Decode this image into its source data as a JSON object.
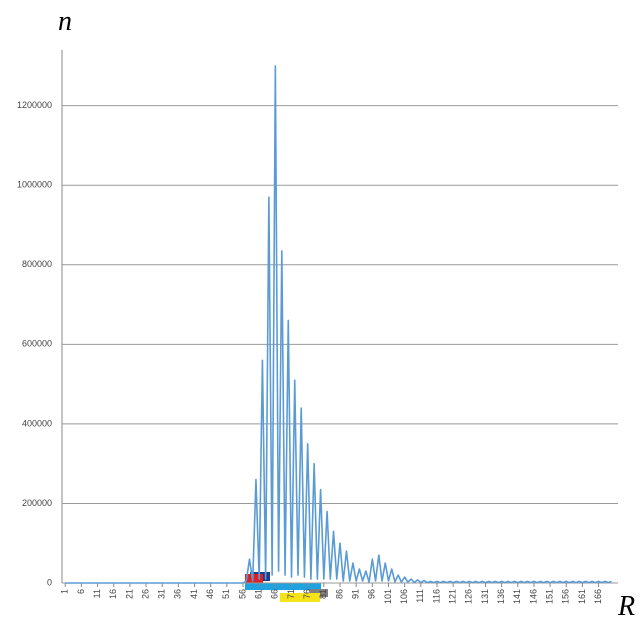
{
  "chart_data": {
    "type": "line",
    "y_label": "n",
    "x_label": "R",
    "x": [
      1,
      2,
      3,
      4,
      5,
      6,
      7,
      8,
      9,
      10,
      11,
      12,
      13,
      14,
      15,
      16,
      17,
      18,
      19,
      20,
      21,
      22,
      23,
      24,
      25,
      26,
      27,
      28,
      29,
      30,
      31,
      32,
      33,
      34,
      35,
      36,
      37,
      38,
      39,
      40,
      41,
      42,
      43,
      44,
      45,
      46,
      47,
      48,
      49,
      50,
      51,
      52,
      53,
      54,
      55,
      56,
      57,
      58,
      59,
      60,
      61,
      62,
      63,
      64,
      65,
      66,
      67,
      68,
      69,
      70,
      71,
      72,
      73,
      74,
      75,
      76,
      77,
      78,
      79,
      80,
      81,
      82,
      83,
      84,
      85,
      86,
      87,
      88,
      89,
      90,
      91,
      92,
      93,
      94,
      95,
      96,
      97,
      98,
      99,
      100,
      101,
      102,
      103,
      104,
      105,
      106,
      107,
      108,
      109,
      110,
      111,
      112,
      113,
      114,
      115,
      116,
      117,
      118,
      119,
      120,
      121,
      122,
      123,
      124,
      125,
      126,
      127,
      128,
      129,
      130,
      131,
      132,
      133,
      134,
      135,
      136,
      137,
      138,
      139,
      140,
      141,
      142,
      143,
      144,
      145,
      146,
      147,
      148,
      149,
      150,
      151,
      152,
      153,
      154,
      155,
      156,
      157,
      158,
      159,
      160,
      161,
      162,
      163,
      164,
      165,
      166,
      167,
      168,
      169,
      170
    ],
    "series": [
      {
        "color": "#5b9bd5",
        "values": [
          0,
          0,
          0,
          0,
          0,
          0,
          0,
          0,
          0,
          0,
          0,
          0,
          0,
          0,
          0,
          0,
          0,
          0,
          0,
          0,
          0,
          0,
          0,
          0,
          0,
          0,
          0,
          0,
          0,
          0,
          0,
          0,
          0,
          0,
          0,
          0,
          0,
          0,
          0,
          0,
          0,
          0,
          0,
          0,
          0,
          0,
          0,
          0,
          0,
          0,
          0,
          0,
          0,
          0,
          0,
          0,
          5000,
          60000,
          5000,
          260000,
          10000,
          560000,
          10000,
          970000,
          20000,
          1300000,
          30000,
          835000,
          20000,
          660000,
          15000,
          510000,
          20000,
          440000,
          15000,
          350000,
          10000,
          300000,
          10000,
          235000,
          10000,
          180000,
          10000,
          130000,
          10000,
          100000,
          5000,
          80000,
          5000,
          50000,
          5000,
          35000,
          5000,
          30000,
          2000,
          60000,
          5000,
          70000,
          5000,
          50000,
          5000,
          35000,
          3000,
          20000,
          2000,
          15000,
          2000,
          10000,
          1000,
          8000,
          1000,
          6000,
          1000,
          4000,
          1000,
          4000,
          1000,
          4000,
          1000,
          4000,
          1000,
          4000,
          1000,
          4000,
          1000,
          4000,
          1000,
          4000,
          1000,
          4000,
          1000,
          4000,
          1000,
          4000,
          1000,
          4000,
          1000,
          4000,
          1000,
          4000,
          1000,
          4000,
          1000,
          4000,
          1000,
          4000,
          1000,
          4000,
          1000,
          4000,
          1000,
          4000,
          1000,
          4000,
          1000,
          4000,
          1000,
          4000,
          1000,
          4000,
          1000,
          4000,
          1000,
          4000,
          1000,
          4000,
          1000,
          4000,
          1000,
          4000
        ]
      }
    ],
    "xlim": [
      0,
      172
    ],
    "xticks": [
      1,
      6,
      11,
      16,
      21,
      26,
      31,
      36,
      41,
      46,
      51,
      56,
      61,
      66,
      71,
      76,
      81,
      86,
      91,
      96,
      101,
      106,
      111,
      116,
      121,
      126,
      131,
      136,
      141,
      146,
      151,
      156,
      161,
      166
    ],
    "ylim": [
      0,
      1340000
    ],
    "yticks": [
      0,
      200000,
      400000,
      600000,
      800000,
      1000000,
      1200000
    ],
    "grid": true
  }
}
